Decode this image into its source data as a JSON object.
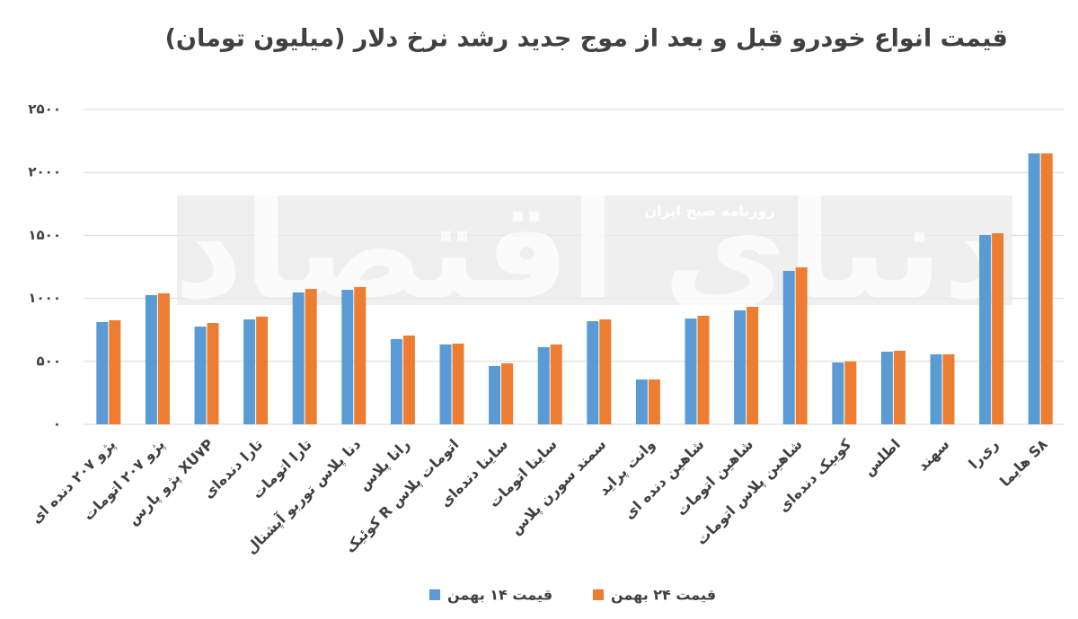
{
  "chart_data": {
    "type": "bar",
    "title": "قیمت انواع خودرو قبل و بعد از موج جدید رشد نرخ دلار (میلیون تومان)",
    "watermark": "دنیای اقتصاد",
    "watermark_caption": "روزنامه صبح ایران",
    "categories": [
      "پژو ۲۰۷ دنده ای",
      "پژو ۲۰۷ اتومات",
      "پژو پارس XU۷P",
      "تارا دنده‌ای",
      "تارا اتومات",
      "دنا پلاس توربو آپشنال",
      "رانا پلاس",
      "کوئیک R اتومات پلاس",
      "ساینا دنده‌ای",
      "ساینا اتومات",
      "سمند سورن پلاس",
      "وانت پراید",
      "شاهین دنده ای",
      "شاهین اتومات",
      "شاهین پلاس اتومات",
      "کوییک دنده‌ای",
      "اطلس",
      "سهند",
      "ری‌را",
      "هایما S۸"
    ],
    "series": [
      {
        "name": "قیمت ۱۴ بهمن",
        "color": "#5b9bd5",
        "values": [
          812,
          1026,
          776,
          833,
          1047,
          1068,
          677,
          634,
          463,
          613,
          819,
          356,
          840,
          905,
          1218,
          491,
          577,
          556,
          1503,
          2151
        ]
      },
      {
        "name": "قیمت ۲۴ بهمن",
        "color": "#ed7d31",
        "values": [
          826,
          1040,
          805,
          855,
          1075,
          1090,
          705,
          641,
          484,
          634,
          833,
          356,
          862,
          933,
          1246,
          499,
          584,
          556,
          1517,
          2151
        ]
      }
    ],
    "ylim": [
      0,
      2500
    ],
    "yticks": [
      {
        "value": 0,
        "label": "۰"
      },
      {
        "value": 500,
        "label": "۵۰۰"
      },
      {
        "value": 1000,
        "label": "۱۰۰۰"
      },
      {
        "value": 1500,
        "label": "۱۵۰۰"
      },
      {
        "value": 2000,
        "label": "۲۰۰۰"
      },
      {
        "value": 2500,
        "label": "۲۵۰۰"
      }
    ],
    "grid": true
  }
}
